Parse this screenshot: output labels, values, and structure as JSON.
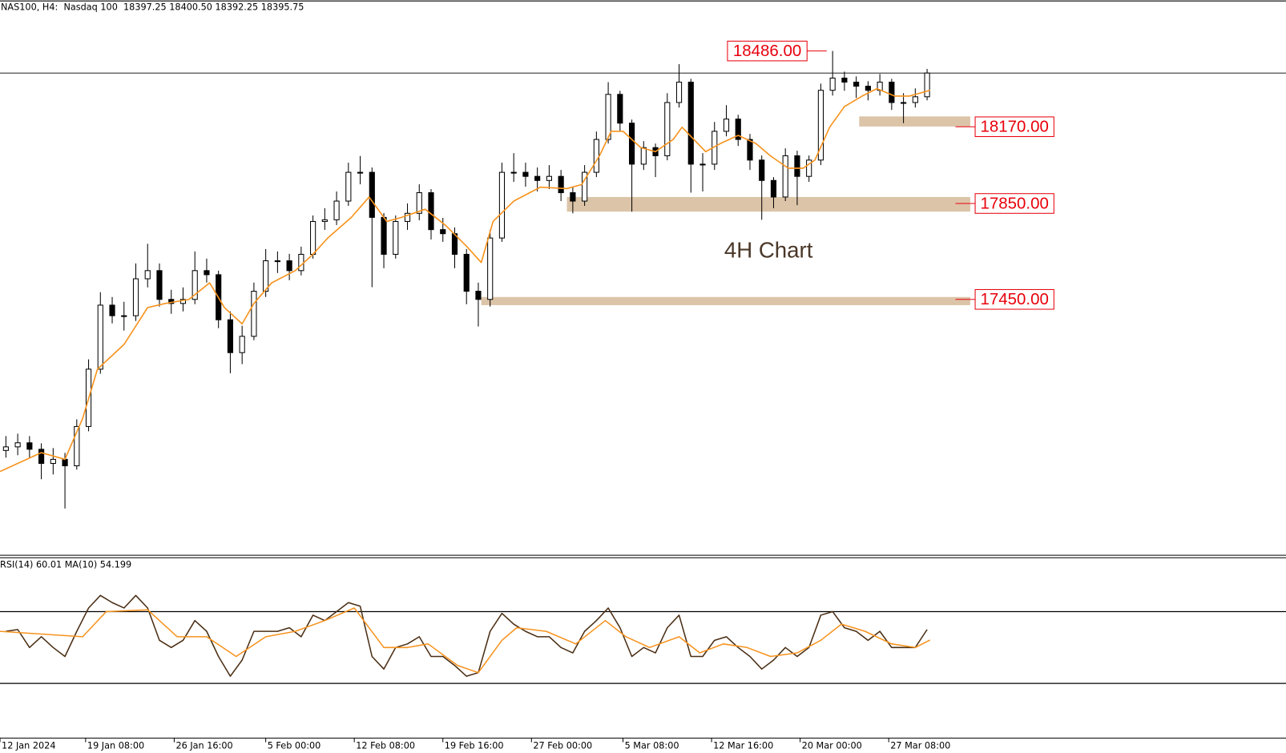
{
  "chart_data": [
    {
      "type": "candlestick",
      "title": "NAS100, H4:  Nasdaq 100  18397.25 18400.50 18392.25 18395.75",
      "annotation": "4H Chart",
      "color": "#000000",
      "xlim": [
        0,
        435
      ],
      "ylim": [
        16383,
        18698
      ],
      "xticks": [
        {
          "value": 0,
          "label": "12 Jan 2024"
        },
        {
          "value": 29,
          "label": "19 Jan 08:00"
        },
        {
          "value": 59,
          "label": "26 Jan 16:00"
        },
        {
          "value": 90,
          "label": "5 Feb 00:00"
        },
        {
          "value": 120,
          "label": "12 Feb 08:00"
        },
        {
          "value": 150,
          "label": "19 Feb 16:00"
        },
        {
          "value": 180,
          "label": "27 Feb 00:00"
        },
        {
          "value": 211,
          "label": "5 Mar 08:00"
        },
        {
          "value": 241,
          "label": "12 Mar 16:00"
        },
        {
          "value": 271,
          "label": "20 Mar 00:00"
        },
        {
          "value": 301,
          "label": "27 Mar 08:00"
        }
      ],
      "x": [
        2,
        6,
        10,
        14,
        18,
        22,
        26,
        30,
        34,
        38,
        42,
        46,
        50,
        54,
        58,
        62,
        66,
        70,
        74,
        78,
        82,
        86,
        90,
        94,
        98,
        102,
        106,
        110,
        114,
        118,
        122,
        126,
        130,
        134,
        138,
        142,
        146,
        150,
        154,
        158,
        162,
        166,
        170,
        174,
        178,
        182,
        186,
        190,
        194,
        198,
        202,
        206,
        210,
        214,
        218,
        222,
        226,
        230,
        234,
        238,
        242,
        246,
        250,
        254,
        258,
        262,
        266,
        270,
        274,
        278,
        282,
        286,
        290,
        294,
        298,
        302,
        306,
        310,
        314
      ],
      "open": [
        16820,
        16835,
        16852,
        16825,
        16766,
        16783,
        16756,
        16920,
        17159,
        17426,
        17382,
        17382,
        17536,
        17570,
        17450,
        17433,
        17450,
        17570,
        17553,
        17365,
        17228,
        17296,
        17484,
        17611,
        17611,
        17570,
        17638,
        17775,
        17782,
        17860,
        17980,
        17980,
        17792,
        17638,
        17775,
        17809,
        17895,
        17741,
        17724,
        17638,
        17484,
        17450,
        17706,
        17980,
        17980,
        17963,
        17946,
        17963,
        17895,
        17860,
        17980,
        18117,
        18305,
        18185,
        18014,
        18083,
        18049,
        18271,
        18356,
        18014,
        18014,
        18151,
        18202,
        18117,
        18031,
        17946,
        17877,
        18049,
        17963,
        18031,
        18322,
        18373,
        18356,
        18339,
        18322,
        18356,
        18271,
        18271,
        18295
      ],
      "high": [
        16880,
        16890,
        16880,
        16850,
        16830,
        16810,
        16950,
        17200,
        17480,
        17460,
        17440,
        17600,
        17682,
        17600,
        17490,
        17500,
        17650,
        17620,
        17570,
        17400,
        17340,
        17520,
        17660,
        17650,
        17640,
        17670,
        17800,
        17830,
        17900,
        18020,
        18048,
        18000,
        17810,
        17800,
        17850,
        17930,
        17910,
        17790,
        17750,
        17660,
        17520,
        17740,
        18020,
        18060,
        18020,
        18000,
        18010,
        17990,
        17920,
        18010,
        18150,
        18356,
        18320,
        18200,
        18110,
        18100,
        18310,
        18431,
        18370,
        18060,
        18190,
        18260,
        18220,
        18140,
        18050,
        17960,
        18080,
        18070,
        18050,
        18350,
        18486,
        18400,
        18380,
        18360,
        18390,
        18370,
        18310,
        18330,
        18411
      ],
      "low": [
        16790,
        16800,
        16790,
        16700,
        16720,
        16578,
        16740,
        16900,
        17140,
        17350,
        17320,
        17360,
        17500,
        17420,
        17390,
        17400,
        17430,
        17520,
        17330,
        17142,
        17180,
        17280,
        17460,
        17560,
        17530,
        17550,
        17620,
        17740,
        17760,
        17840,
        17930,
        17501,
        17580,
        17620,
        17740,
        17780,
        17700,
        17690,
        17580,
        17430,
        17337,
        17420,
        17690,
        17940,
        17920,
        17900,
        17910,
        17860,
        17809,
        17840,
        17960,
        18100,
        18150,
        17816,
        17990,
        17960,
        18030,
        18250,
        17895,
        17900,
        17990,
        18130,
        18090,
        17990,
        17782,
        17830,
        17860,
        17843,
        17940,
        18010,
        18300,
        18320,
        18290,
        18280,
        18300,
        18240,
        18185,
        18250,
        18280
      ],
      "close": [
        16835,
        16852,
        16825,
        16766,
        16783,
        16756,
        16920,
        17159,
        17426,
        17382,
        17382,
        17536,
        17570,
        17450,
        17433,
        17450,
        17570,
        17553,
        17365,
        17228,
        17296,
        17484,
        17611,
        17611,
        17570,
        17638,
        17775,
        17782,
        17860,
        17980,
        17980,
        17792,
        17638,
        17775,
        17809,
        17895,
        17741,
        17724,
        17638,
        17484,
        17450,
        17706,
        17980,
        17980,
        17963,
        17946,
        17963,
        17895,
        17860,
        17980,
        18117,
        18305,
        18185,
        18014,
        18083,
        18049,
        18271,
        18356,
        18014,
        18014,
        18151,
        18202,
        18117,
        18031,
        17946,
        17877,
        18049,
        17963,
        18031,
        18322,
        18373,
        18356,
        18339,
        18322,
        18356,
        18271,
        18271,
        18295,
        18394
      ],
      "ma": {
        "color": "#f7931e",
        "x": [
          0,
          14,
          22,
          28,
          33,
          42,
          50,
          56,
          64,
          71,
          76,
          82,
          86,
          92,
          100,
          106,
          111,
          119,
          125,
          131,
          136,
          144,
          151,
          158,
          163,
          167,
          174,
          183,
          192,
          197,
          203,
          207,
          211,
          217,
          222,
          228,
          231,
          235,
          239,
          244,
          250,
          256,
          261,
          267,
          272,
          276,
          281,
          286,
          292,
          297,
          303,
          308,
          315
        ],
        "values": [
          16732,
          16811,
          16783,
          16954,
          17159,
          17262,
          17416,
          17433,
          17450,
          17519,
          17416,
          17348,
          17433,
          17519,
          17570,
          17638,
          17706,
          17792,
          17877,
          17775,
          17792,
          17826,
          17758,
          17672,
          17604,
          17775,
          17860,
          17918,
          17912,
          17929,
          18048,
          18151,
          18151,
          18083,
          18066,
          18117,
          18168,
          18117,
          18066,
          18100,
          18134,
          18100,
          18048,
          17997,
          17997,
          18031,
          18168,
          18254,
          18298,
          18329,
          18298,
          18298,
          18322
        ]
      },
      "label_color": "#e8000b",
      "zone_color": "#dcc4a8",
      "high_label": {
        "value": 18486,
        "label": "18486.00",
        "x": 280
      },
      "zones": [
        {
          "level": {
            "value": 18170,
            "label": "18170.00"
          },
          "top": 18213,
          "bottom": 18171,
          "start": 291
        },
        {
          "level": {
            "value": 17850,
            "label": "17850.00"
          },
          "top": 17877,
          "bottom": 17816,
          "start": 192
        },
        {
          "level": {
            "value": 17450,
            "label": "17450.00"
          },
          "top": 17460,
          "bottom": 17426,
          "start": 163
        }
      ]
    },
    {
      "type": "line",
      "title": "RSI(14) 60.01 MA(10) 54.199",
      "ylim": [
        0,
        100
      ],
      "levels": [
        70,
        30
      ],
      "series": [
        {
          "color": "#4a2e14",
          "x": [
            2,
            6,
            10,
            14,
            18,
            22,
            26,
            30,
            34,
            38,
            42,
            46,
            50,
            54,
            58,
            62,
            66,
            70,
            74,
            78,
            82,
            86,
            90,
            94,
            98,
            102,
            106,
            110,
            114,
            118,
            122,
            126,
            130,
            134,
            138,
            142,
            146,
            150,
            154,
            158,
            162,
            166,
            170,
            174,
            178,
            182,
            186,
            190,
            194,
            198,
            202,
            206,
            210,
            214,
            218,
            222,
            226,
            230,
            234,
            238,
            242,
            246,
            250,
            254,
            258,
            262,
            266,
            270,
            274,
            278,
            282,
            286,
            290,
            294,
            298,
            302,
            306,
            310,
            314
          ],
          "values": [
            59,
            60,
            50,
            56,
            50,
            45,
            59,
            72,
            79,
            75,
            72,
            79,
            72,
            54,
            50,
            54,
            65,
            59,
            45,
            34,
            43,
            59,
            59,
            59,
            61,
            56,
            68,
            65,
            70,
            75,
            73,
            45,
            38,
            50,
            52,
            56,
            45,
            45,
            40,
            34,
            36,
            59,
            69,
            63,
            59,
            56,
            56,
            50,
            47,
            59,
            65,
            72,
            61,
            45,
            50,
            47,
            61,
            68,
            45,
            45,
            54,
            56,
            50,
            45,
            38,
            43,
            50,
            45,
            50,
            68,
            70,
            61,
            59,
            54,
            59,
            50,
            50,
            50,
            60.01
          ]
        },
        {
          "color": "#f7931e",
          "x": [
            0,
            28,
            36,
            50,
            60,
            70,
            80,
            90,
            100,
            110,
            120,
            130,
            138,
            145,
            155,
            162,
            170,
            175,
            185,
            195,
            205,
            212,
            220,
            230,
            237,
            245,
            253,
            261,
            270,
            278,
            285,
            293,
            302,
            310,
            315
          ],
          "values": [
            59,
            56,
            70,
            71,
            56,
            56,
            45,
            56,
            59,
            65,
            72,
            50,
            50,
            52,
            40,
            36,
            54,
            61,
            59,
            52,
            65,
            56,
            50,
            56,
            47,
            52,
            50,
            45,
            47,
            54,
            63,
            59,
            52,
            50,
            54.199
          ]
        }
      ]
    }
  ]
}
